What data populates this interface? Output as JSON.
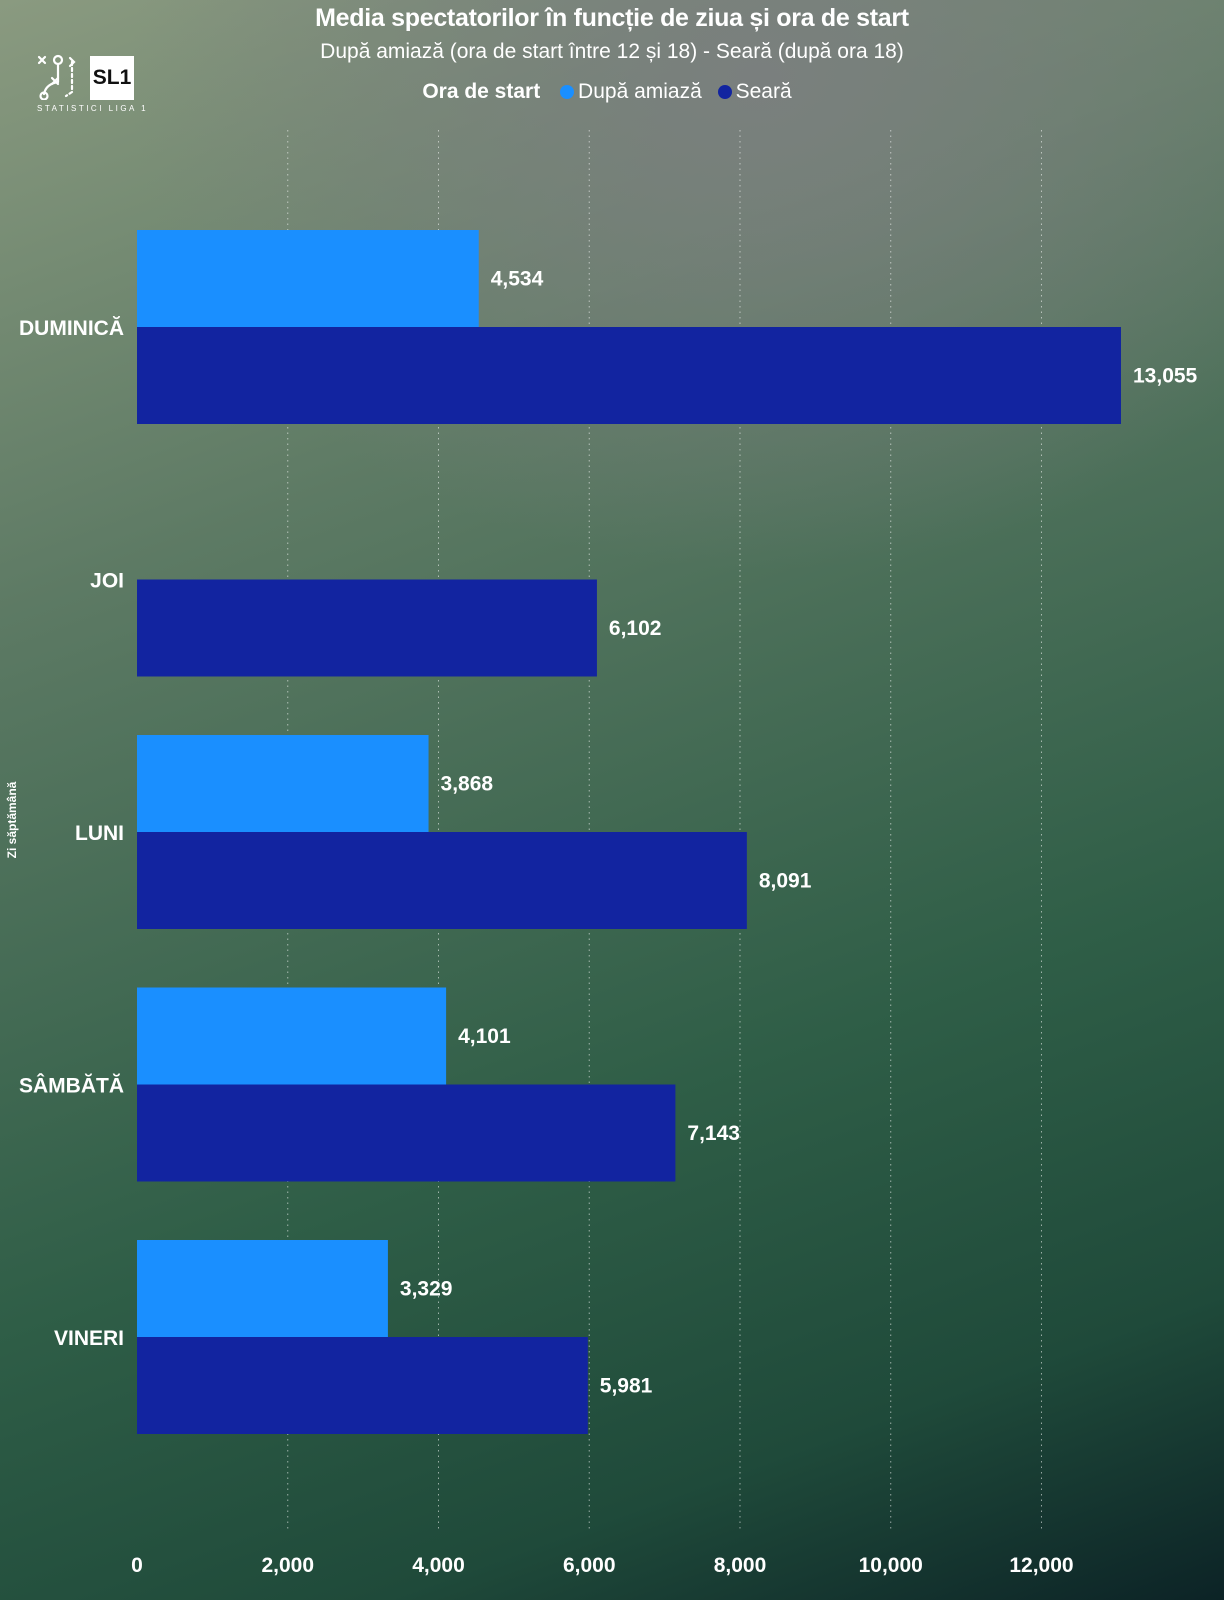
{
  "chart_data": {
    "type": "bar",
    "orientation": "horizontal",
    "title": "Media spectatorilor în funcție de ziua și ora de start",
    "subtitle": "După amiază  (ora de start între 12 și 18) - Seară (după ora 18)",
    "ylabel": "Zi săptămână",
    "xlabel": "",
    "legend_title": "Ora de start",
    "legend_placement": "top-center",
    "categories": [
      "DUMINICĂ",
      "JOI",
      "LUNI",
      "SÂMBĂTĂ",
      "VINERI"
    ],
    "series": [
      {
        "name": "După amiază",
        "color": "#1a8fff",
        "values": [
          4534,
          null,
          3868,
          4101,
          3329
        ],
        "labels": [
          "4,534",
          "",
          "3,868",
          "4,101",
          "3,329"
        ]
      },
      {
        "name": "Seară",
        "color": "#1224a0",
        "values": [
          13055,
          6102,
          8091,
          7143,
          5981
        ],
        "labels": [
          "13,055",
          "6,102",
          "8,091",
          "7,143",
          "5,981"
        ]
      }
    ],
    "xlim": [
      0,
      14000
    ],
    "xticks": [
      0,
      2000,
      4000,
      6000,
      8000,
      10000,
      12000
    ],
    "xtick_labels": [
      "0",
      "2,000",
      "4,000",
      "6,000",
      "8,000",
      "10,000",
      "12,000"
    ],
    "grid": "vertical-dotted"
  },
  "logo": {
    "name": "SL1",
    "subtitle": "STATISTICI LIGA 1"
  }
}
